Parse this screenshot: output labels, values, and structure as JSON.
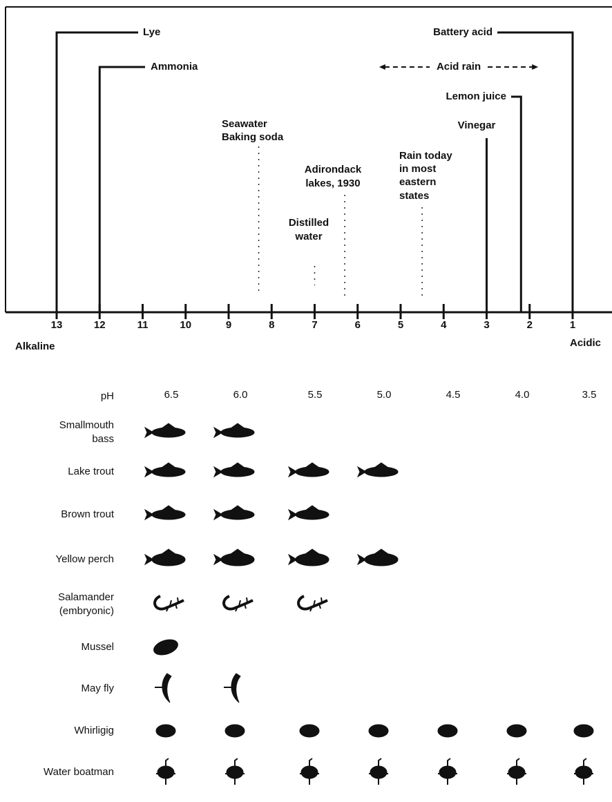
{
  "scale": {
    "ticks": [
      13,
      12,
      11,
      10,
      9,
      8,
      7,
      6,
      5,
      4,
      3,
      2,
      1
    ],
    "left_label": "Alkaline",
    "right_label": "Acidic"
  },
  "markers": [
    {
      "lines": [
        "Lye"
      ],
      "ph": 13
    },
    {
      "lines": [
        "Ammonia"
      ],
      "ph": 12
    },
    {
      "lines": [
        "Battery acid"
      ],
      "ph": 1
    },
    {
      "lines": [
        "Lemon juice"
      ],
      "ph": 2.2
    },
    {
      "lines": [
        "Vinegar"
      ],
      "ph": 3
    },
    {
      "lines": [
        "Seawater",
        "Baking soda"
      ],
      "ph": 8.3
    },
    {
      "lines": [
        "Adirondack",
        "lakes, 1930"
      ],
      "ph": 6.3
    },
    {
      "lines": [
        "Distilled",
        "water"
      ],
      "ph": 7
    },
    {
      "lines": [
        "Rain today",
        "in most",
        "eastern",
        "states"
      ],
      "ph": 4.5
    }
  ],
  "acid_rain": {
    "label": "Acid rain",
    "from_ph": 5.5,
    "to_ph": 1.8
  },
  "table": {
    "header": "pH",
    "columns": [
      "6.5",
      "6.0",
      "5.5",
      "5.0",
      "4.5",
      "4.0",
      "3.5"
    ],
    "rows": [
      {
        "lines": [
          "Smallmouth",
          "bass"
        ],
        "present": [
          true,
          true,
          false,
          false,
          false,
          false,
          false
        ]
      },
      {
        "lines": [
          "Lake trout"
        ],
        "present": [
          true,
          true,
          true,
          true,
          false,
          false,
          false
        ]
      },
      {
        "lines": [
          "Brown trout"
        ],
        "present": [
          true,
          true,
          true,
          false,
          false,
          false,
          false
        ]
      },
      {
        "lines": [
          "Yellow perch"
        ],
        "present": [
          true,
          true,
          true,
          true,
          false,
          false,
          false
        ]
      },
      {
        "lines": [
          "Salamander",
          "(embryonic)"
        ],
        "present": [
          true,
          true,
          true,
          false,
          false,
          false,
          false
        ]
      },
      {
        "lines": [
          "Mussel"
        ],
        "present": [
          true,
          false,
          false,
          false,
          false,
          false,
          false
        ]
      },
      {
        "lines": [
          "May fly"
        ],
        "present": [
          true,
          true,
          false,
          false,
          false,
          false,
          false
        ]
      },
      {
        "lines": [
          "Whirligig"
        ],
        "present": [
          true,
          true,
          true,
          true,
          true,
          true,
          true
        ]
      },
      {
        "lines": [
          "Water boatman"
        ],
        "present": [
          true,
          true,
          true,
          true,
          true,
          true,
          true
        ]
      }
    ]
  }
}
